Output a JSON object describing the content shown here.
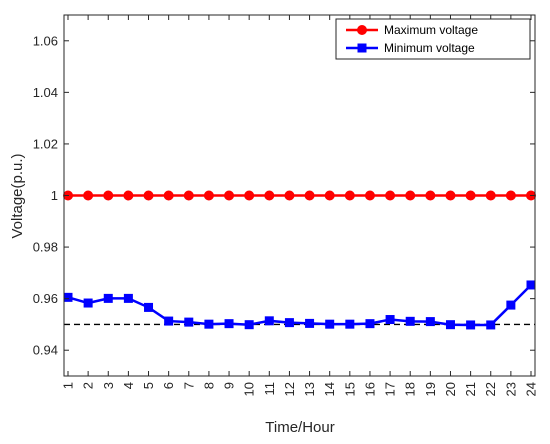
{
  "chart_data": {
    "type": "line",
    "title": "",
    "xlabel": "Time/Hour",
    "ylabel": "Voltage(p.u.)",
    "x": [
      1,
      2,
      3,
      4,
      5,
      6,
      7,
      8,
      9,
      10,
      11,
      12,
      13,
      14,
      15,
      16,
      17,
      18,
      19,
      20,
      21,
      22,
      23,
      24
    ],
    "xlim": [
      1,
      24
    ],
    "ylim": [
      0.93,
      1.07
    ],
    "y_ticks": [
      0.94,
      0.96,
      0.98,
      1,
      1.02,
      1.04,
      1.06
    ],
    "y_tick_labels": [
      "0.94",
      "0.96",
      "0.98",
      "1",
      "1.02",
      "1.04",
      "1.06"
    ],
    "x_tick_labels": [
      "1",
      "2",
      "3",
      "4",
      "5",
      "6",
      "7",
      "8",
      "9",
      "10",
      "11",
      "12",
      "13",
      "14",
      "15",
      "16",
      "17",
      "18",
      "19",
      "20",
      "21",
      "22",
      "23",
      "24"
    ],
    "grid": false,
    "legend_position": "top-right",
    "series": [
      {
        "name": "Maximum voltage",
        "color": "#ff0000",
        "marker": "circle",
        "values": [
          1,
          1,
          1,
          1,
          1,
          1,
          1,
          1,
          1,
          1,
          1,
          1,
          1,
          1,
          1,
          1,
          1,
          1,
          1,
          1,
          1,
          1,
          1,
          1
        ]
      },
      {
        "name": "Minimum voltage",
        "color": "#0000ff",
        "marker": "square",
        "values": [
          0.9605,
          0.9583,
          0.9601,
          0.9601,
          0.9566,
          0.9513,
          0.9509,
          0.9501,
          0.9503,
          0.9499,
          0.9514,
          0.9507,
          0.9504,
          0.9501,
          0.9501,
          0.9503,
          0.9519,
          0.9512,
          0.9511,
          0.9499,
          0.9498,
          0.9498,
          0.9575,
          0.9653
        ]
      }
    ],
    "reference_line": {
      "y": 0.95,
      "style": "dashed",
      "color": "#000000"
    }
  }
}
